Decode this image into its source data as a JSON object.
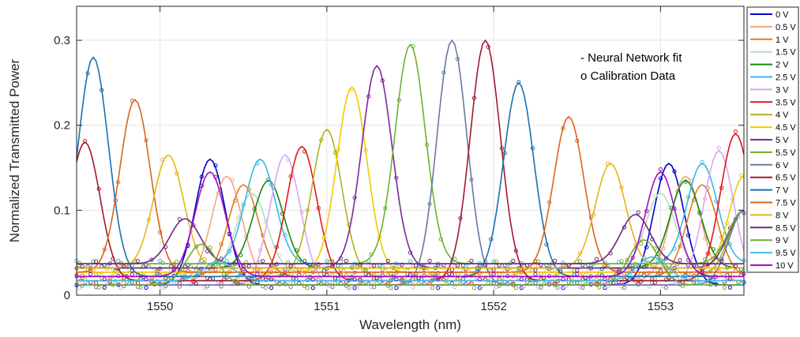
{
  "chart_data": {
    "type": "line",
    "xlabel": "Wavelength (nm)",
    "ylabel": "Normalized Transmitted Power",
    "xlim": [
      1549.5,
      1553.5
    ],
    "ylim": [
      0,
      0.34
    ],
    "xticks": [
      1550,
      1551,
      1552,
      1553
    ],
    "yticks": [
      0,
      0.1,
      0.2,
      0.3
    ],
    "ytick_labels": [
      "0",
      "0.1",
      "0.2",
      "0.3"
    ],
    "grid": "on",
    "legend_position": "right",
    "annotations": [
      "- Neural Network fit",
      "o Calibration Data"
    ],
    "series": [
      {
        "name": "0 V",
        "color": "#0000c8",
        "peak_x": 1553.05,
        "peak_y": 0.155,
        "sec_x": 1550.3,
        "sec_y": 0.16
      },
      {
        "name": "0.5 V",
        "color": "#f4a582",
        "peak_x": 1553.15,
        "peak_y": 0.14,
        "sec_x": 1550.4,
        "sec_y": 0.14
      },
      {
        "name": "1 V",
        "color": "#e07b1c",
        "peak_x": 1553.25,
        "peak_y": 0.13,
        "sec_x": 1550.5,
        "sec_y": 0.13
      },
      {
        "name": "1.5 V",
        "color": "#b8dcc0",
        "peak_x": 1553.0,
        "peak_y": 0.12,
        "sec_x": 1550.55,
        "sec_y": 0.12
      },
      {
        "name": "2 V",
        "color": "#108a10",
        "peak_x": 1553.15,
        "peak_y": 0.135,
        "sec_x": 1550.65,
        "sec_y": 0.135
      },
      {
        "name": "2.5 V",
        "color": "#3ab4e8",
        "peak_x": 1553.25,
        "peak_y": 0.155,
        "sec_x": 1550.6,
        "sec_y": 0.16
      },
      {
        "name": "3 V",
        "color": "#d8a8ee",
        "peak_x": 1553.35,
        "peak_y": 0.17,
        "sec_x": 1550.75,
        "sec_y": 0.165
      },
      {
        "name": "3.5 V",
        "color": "#e01818",
        "peak_x": 1553.45,
        "peak_y": 0.19,
        "sec_x": 1550.85,
        "sec_y": 0.175
      },
      {
        "name": "4 V",
        "color": "#b0b020",
        "peak_x": 1553.5,
        "peak_y": 0.1,
        "sec_x": 1551.0,
        "sec_y": 0.195
      },
      {
        "name": "4.5 V",
        "color": "#f5c800",
        "peak_x": 1553.5,
        "peak_y": 0.14,
        "sec_x": 1551.15,
        "sec_y": 0.245
      },
      {
        "name": "5 V",
        "color": "#7a2a9a",
        "peak_x": 1553.5,
        "peak_y": 0.1,
        "sec_x": 1551.3,
        "sec_y": 0.27
      },
      {
        "name": "5.5 V",
        "color": "#6ab030",
        "peak_x": 1553.5,
        "peak_y": 0.1,
        "sec_x": 1551.5,
        "sec_y": 0.295
      },
      {
        "name": "6 V",
        "color": "#667aa0",
        "peak_x": 1553.5,
        "peak_y": 0.1,
        "sec_x": 1551.75,
        "sec_y": 0.3
      },
      {
        "name": "6.5 V",
        "color": "#a01830",
        "peak_x": 1549.55,
        "peak_y": 0.18,
        "sec_x": 1551.95,
        "sec_y": 0.3
      },
      {
        "name": "7 V",
        "color": "#1a70b0",
        "peak_x": 1549.6,
        "peak_y": 0.28,
        "sec_x": 1552.15,
        "sec_y": 0.25
      },
      {
        "name": "7.5 V",
        "color": "#d8641c",
        "peak_x": 1549.85,
        "peak_y": 0.23,
        "sec_x": 1552.45,
        "sec_y": 0.21
      },
      {
        "name": "8 V",
        "color": "#e8b418",
        "peak_x": 1550.05,
        "peak_y": 0.165,
        "sec_x": 1552.7,
        "sec_y": 0.155
      },
      {
        "name": "8.5 V",
        "color": "#6a2880",
        "peak_x": 1550.15,
        "peak_y": 0.09,
        "sec_x": 1552.85,
        "sec_y": 0.095
      },
      {
        "name": "9 V",
        "color": "#78a830",
        "peak_x": 1550.25,
        "peak_y": 0.06,
        "sec_x": 1552.9,
        "sec_y": 0.065
      },
      {
        "name": "9.5 V",
        "color": "#48bce0",
        "peak_x": 1550.35,
        "peak_y": 0.04,
        "sec_x": 1552.95,
        "sec_y": 0.045
      },
      {
        "name": "10 V",
        "color": "#a010c0",
        "peak_x": 1550.3,
        "peak_y": 0.145,
        "sec_x": 1553.0,
        "sec_y": 0.145
      }
    ]
  }
}
